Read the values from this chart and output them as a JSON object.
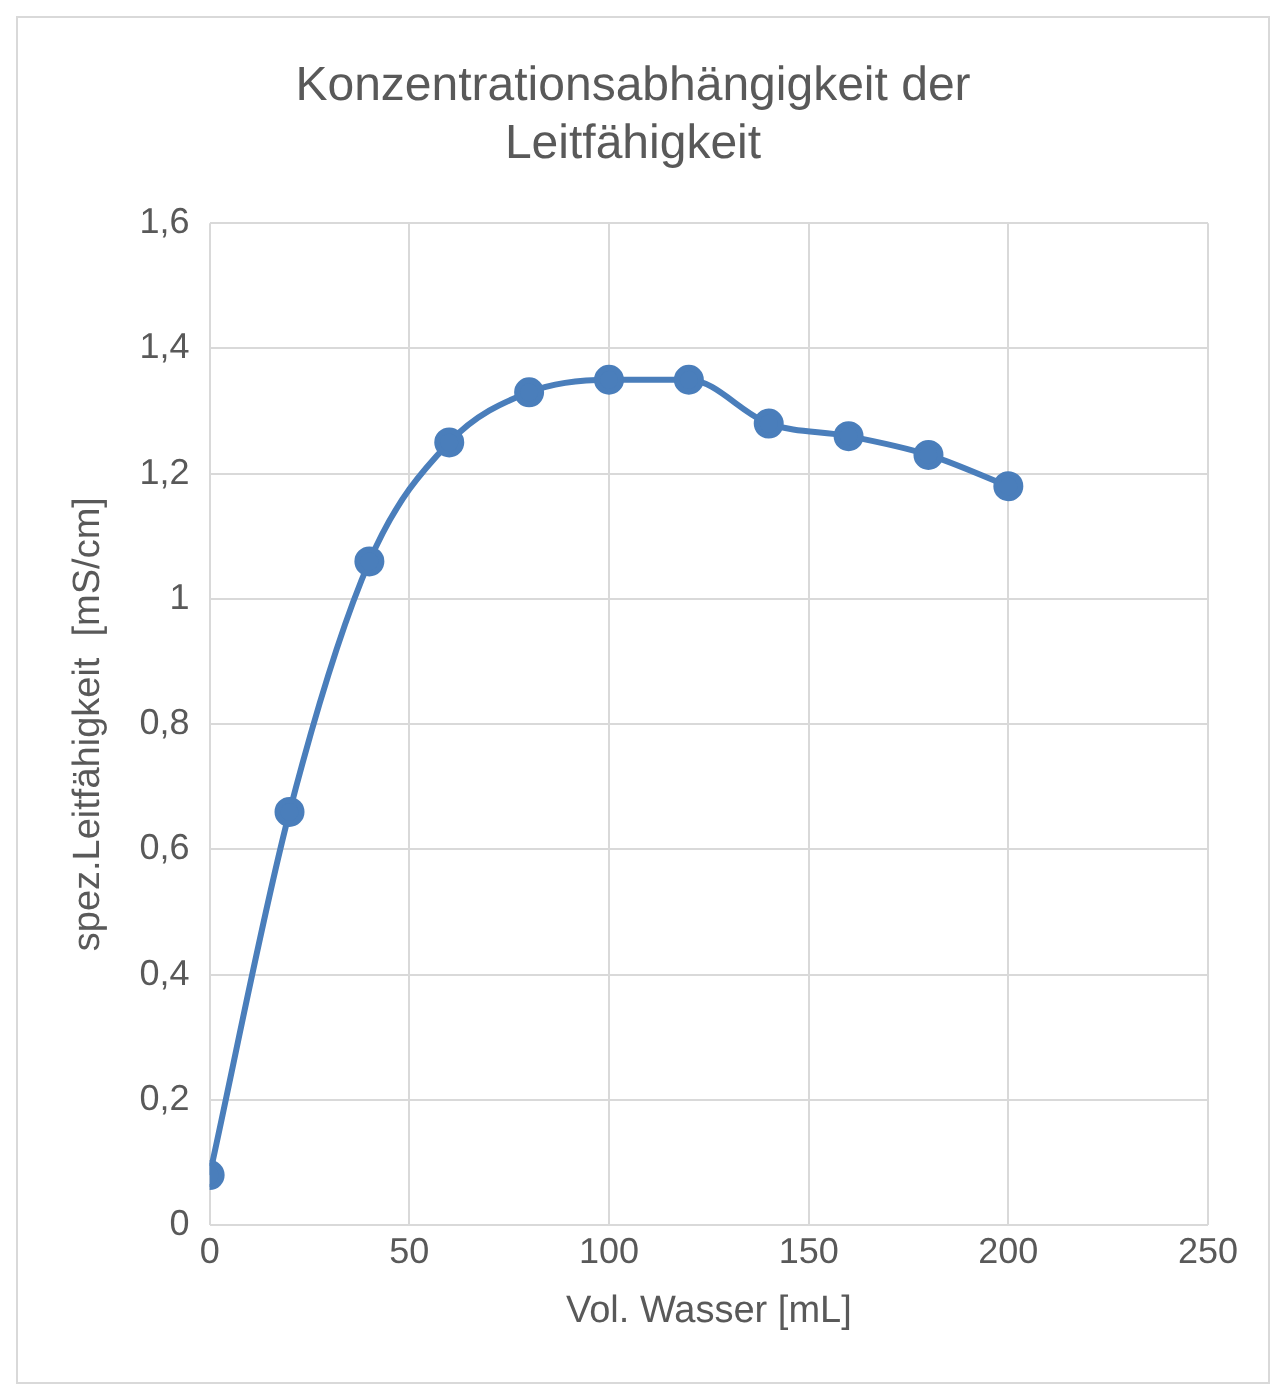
{
  "chart_data": {
    "type": "line",
    "title": "Konzentrationsabhängigkeit der Leitfähigkeit",
    "xlabel": "Vol. Wasser [mL]",
    "ylabel": "spez.Leitfähigkeit  [mS/cm]",
    "x": [
      0,
      20,
      40,
      60,
      80,
      100,
      120,
      140,
      160,
      180,
      200
    ],
    "series": [
      {
        "color": "#4a7ebb",
        "values": [
          0.08,
          0.66,
          1.06,
          1.25,
          1.33,
          1.35,
          1.35,
          1.28,
          1.26,
          1.23,
          1.18
        ]
      }
    ],
    "xlim": [
      0,
      250
    ],
    "xticks": [
      0,
      50,
      100,
      150,
      200,
      250
    ],
    "ylim": [
      0,
      1.6
    ],
    "yticks": [
      0,
      {
        "value": 0.2,
        "label": "0,2"
      },
      {
        "value": 0.4,
        "label": "0,4"
      },
      {
        "value": 0.6,
        "label": "0,6"
      },
      {
        "value": 0.8,
        "label": "0,8"
      },
      1,
      {
        "value": 1.2,
        "label": "1,2"
      },
      {
        "value": 1.4,
        "label": "1,4"
      },
      {
        "value": 1.6,
        "label": "1,6"
      }
    ],
    "grid": true,
    "marker": "circle",
    "line_style": "solid",
    "legend": false
  }
}
